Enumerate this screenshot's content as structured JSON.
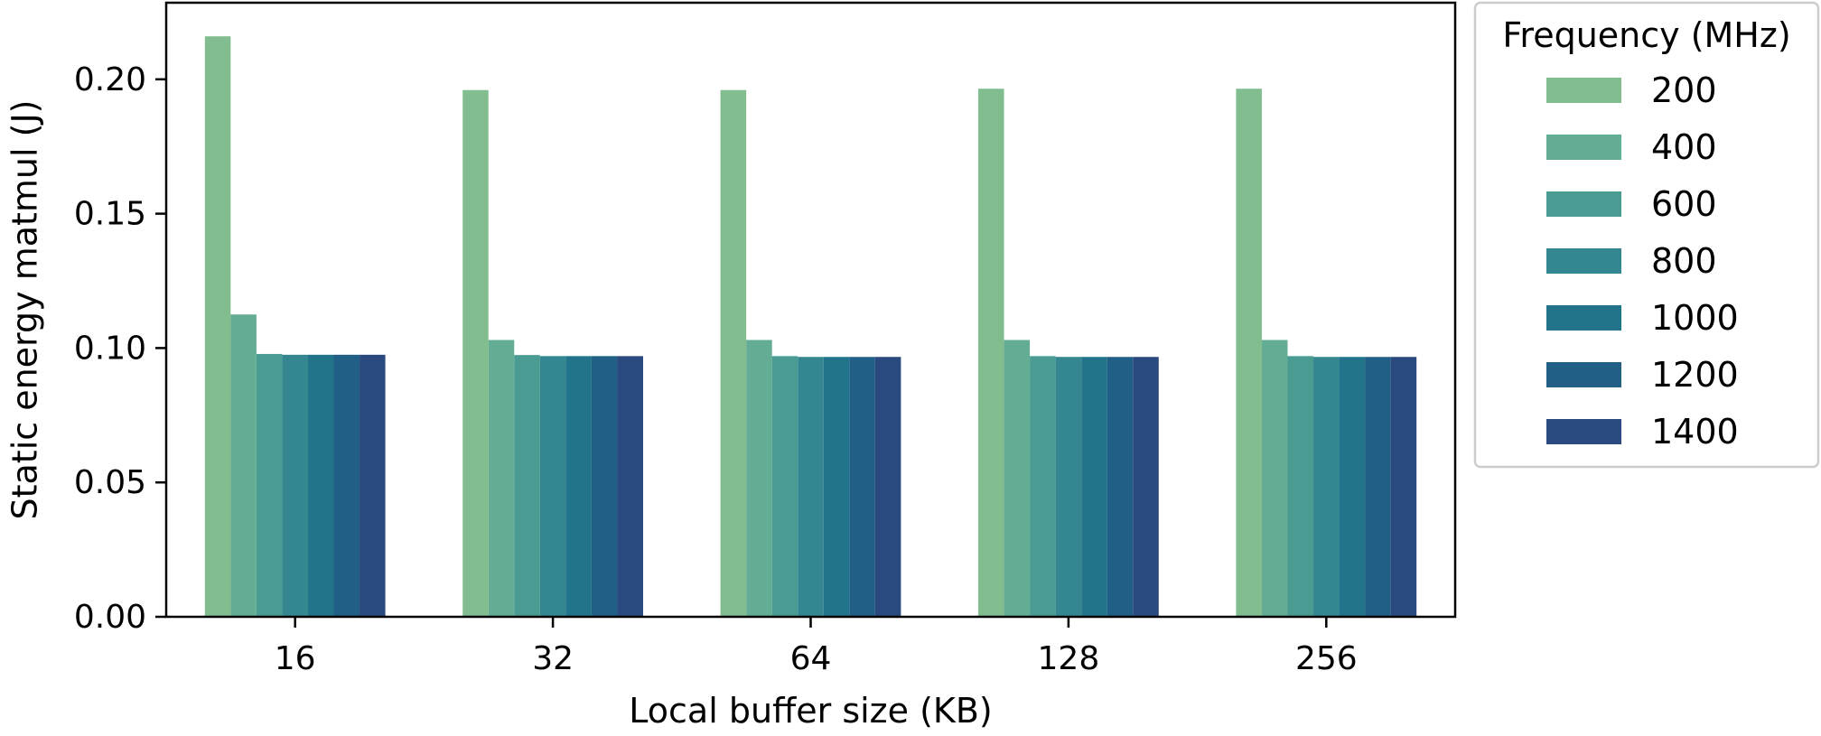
{
  "chart_data": {
    "type": "bar",
    "xlabel": "Local buffer size (KB)",
    "ylabel": "Static energy matmul (J)",
    "categories": [
      "16",
      "32",
      "64",
      "128",
      "256"
    ],
    "ylim": [
      0,
      0.2285
    ],
    "yticks": [
      "0.00",
      "0.05",
      "0.10",
      "0.15",
      "0.20"
    ],
    "grid": false,
    "legend": {
      "title": "Frequency (MHz)",
      "placement": "outside-right"
    },
    "series": [
      {
        "name": "200",
        "color": "#82bd90",
        "values": [
          0.216,
          0.196,
          0.196,
          0.1965,
          0.1965
        ]
      },
      {
        "name": "400",
        "color": "#62ad93",
        "values": [
          0.1125,
          0.103,
          0.103,
          0.103,
          0.103
        ]
      },
      {
        "name": "600",
        "color": "#4a9b92",
        "values": [
          0.0978,
          0.0974,
          0.097,
          0.097,
          0.097
        ]
      },
      {
        "name": "800",
        "color": "#348790",
        "values": [
          0.0975,
          0.097,
          0.0967,
          0.0967,
          0.0967
        ]
      },
      {
        "name": "1000",
        "color": "#22748a",
        "values": [
          0.0975,
          0.097,
          0.0967,
          0.0967,
          0.0967
        ]
      },
      {
        "name": "1200",
        "color": "#215f86",
        "values": [
          0.0975,
          0.097,
          0.0967,
          0.0967,
          0.0967
        ]
      },
      {
        "name": "1400",
        "color": "#2a4a7f",
        "values": [
          0.0975,
          0.097,
          0.0967,
          0.0967,
          0.0967
        ]
      }
    ]
  }
}
